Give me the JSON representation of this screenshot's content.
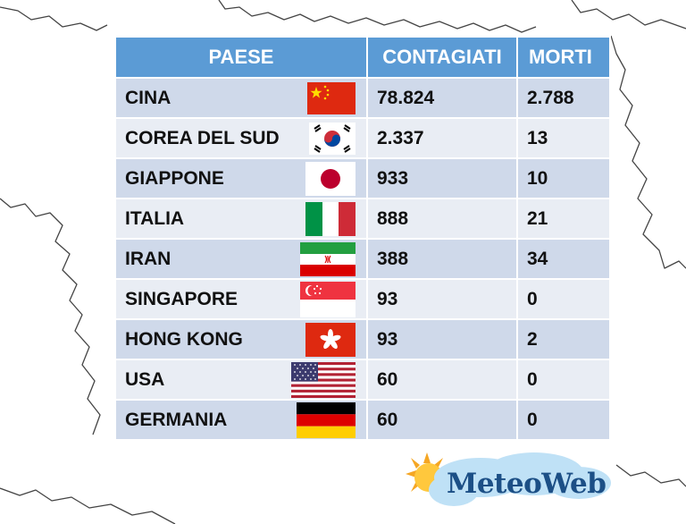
{
  "table": {
    "headers": {
      "country": "PAESE",
      "infected": "CONTAGIATI",
      "deaths": "MORTI"
    },
    "rows": [
      {
        "country": "CINA",
        "infected": "78.824",
        "deaths": "2.788",
        "flag_icon": "china-flag-icon"
      },
      {
        "country": "COREA DEL SUD",
        "infected": "2.337",
        "deaths": "13",
        "flag_icon": "south-korea-flag-icon"
      },
      {
        "country": "GIAPPONE",
        "infected": "933",
        "deaths": "10",
        "flag_icon": "japan-flag-icon"
      },
      {
        "country": "ITALIA",
        "infected": "888",
        "deaths": "21",
        "flag_icon": "italy-flag-icon"
      },
      {
        "country": "IRAN",
        "infected": "388",
        "deaths": "34",
        "flag_icon": "iran-flag-icon"
      },
      {
        "country": "SINGAPORE",
        "infected": "93",
        "deaths": "0",
        "flag_icon": "singapore-flag-icon"
      },
      {
        "country": "HONG KONG",
        "infected": "93",
        "deaths": "2",
        "flag_icon": "hong-kong-flag-icon"
      },
      {
        "country": "USA",
        "infected": "60",
        "deaths": "0",
        "flag_icon": "usa-flag-icon"
      },
      {
        "country": "GERMANIA",
        "infected": "60",
        "deaths": "0",
        "flag_icon": "germany-flag-icon"
      }
    ]
  },
  "logo": {
    "text": "MeteoWeb",
    "icon": "sun-cloud-icon"
  },
  "colors": {
    "header": "#5b9bd5",
    "row_dark": "#cfd9ea",
    "row_light": "#e9edf4",
    "logo_text": "#1c4f86"
  }
}
